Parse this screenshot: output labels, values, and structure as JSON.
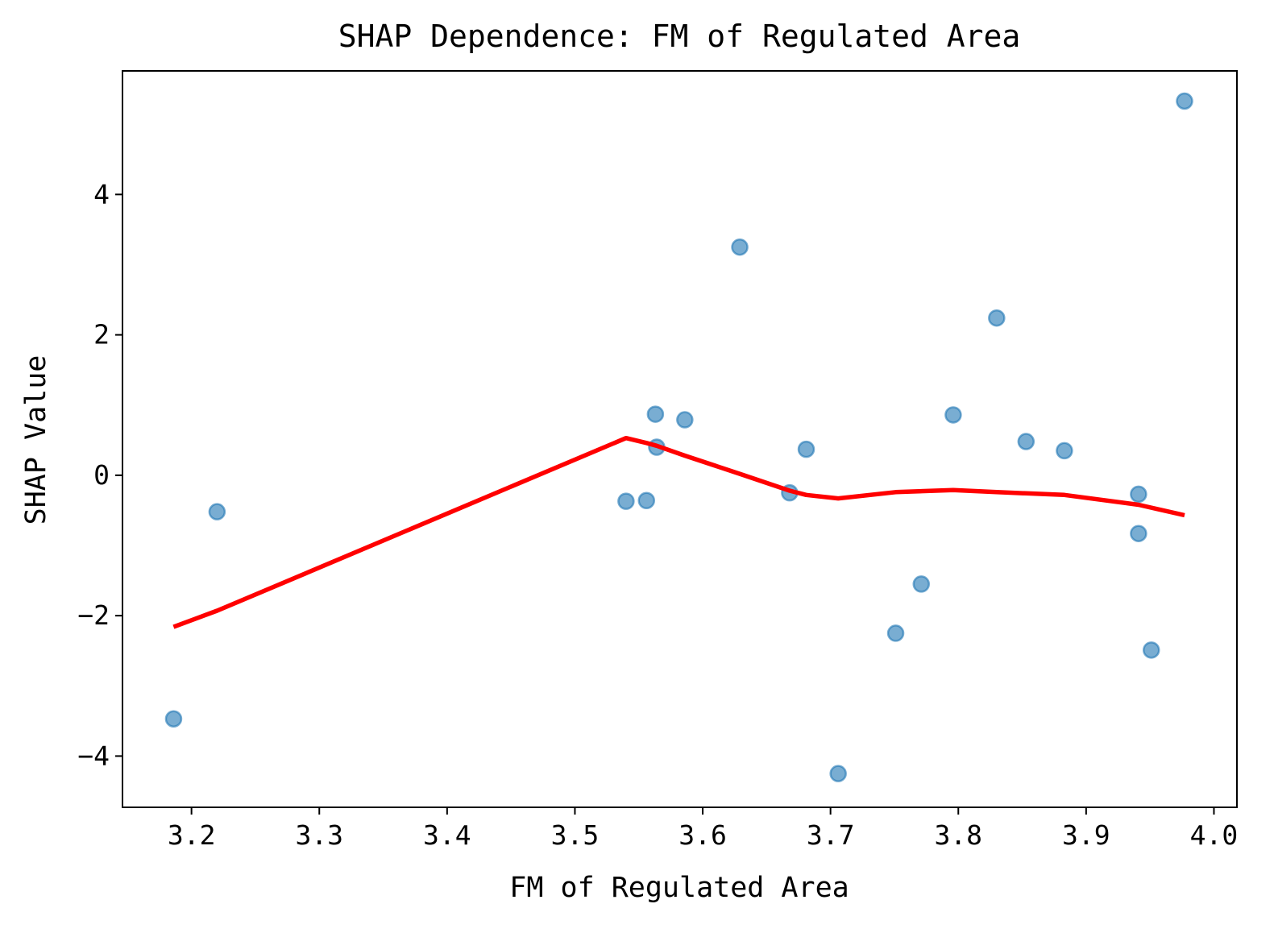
{
  "chart_data": {
    "type": "scatter",
    "title": "SHAP Dependence: FM of Regulated Area",
    "xlabel": "FM of Regulated Area",
    "ylabel": "SHAP Value",
    "xlim": [
      3.146,
      4.018
    ],
    "ylim": [
      -4.73,
      5.76
    ],
    "xticks": [
      3.2,
      3.3,
      3.4,
      3.5,
      3.6,
      3.7,
      3.8,
      3.9,
      4.0
    ],
    "xtick_labels": [
      "3.2",
      "3.3",
      "3.4",
      "3.5",
      "3.6",
      "3.7",
      "3.8",
      "3.9",
      "4.0"
    ],
    "yticks": [
      -4,
      -2,
      0,
      2,
      4
    ],
    "ytick_labels": [
      "−4",
      "−2",
      "0",
      "2",
      "4"
    ],
    "grid": false,
    "colors": {
      "points": "#1f77b4",
      "trend": "#ff0000"
    },
    "series": [
      {
        "type": "scatter",
        "points": [
          {
            "x": 3.186,
            "y": -3.47
          },
          {
            "x": 3.22,
            "y": -0.52
          },
          {
            "x": 3.54,
            "y": -0.37
          },
          {
            "x": 3.556,
            "y": -0.36
          },
          {
            "x": 3.563,
            "y": 0.87
          },
          {
            "x": 3.564,
            "y": 0.4
          },
          {
            "x": 3.586,
            "y": 0.79
          },
          {
            "x": 3.629,
            "y": 3.25
          },
          {
            "x": 3.668,
            "y": -0.25
          },
          {
            "x": 3.681,
            "y": 0.37
          },
          {
            "x": 3.706,
            "y": -4.25
          },
          {
            "x": 3.751,
            "y": -2.25
          },
          {
            "x": 3.771,
            "y": -1.55
          },
          {
            "x": 3.796,
            "y": 0.86
          },
          {
            "x": 3.83,
            "y": 2.24
          },
          {
            "x": 3.853,
            "y": 0.48
          },
          {
            "x": 3.883,
            "y": 0.35
          },
          {
            "x": 3.941,
            "y": -0.27
          },
          {
            "x": 3.941,
            "y": -0.83
          },
          {
            "x": 3.951,
            "y": -2.49
          },
          {
            "x": 3.977,
            "y": 5.33
          }
        ]
      },
      {
        "type": "line",
        "points": [
          {
            "x": 3.186,
            "y": -2.16
          },
          {
            "x": 3.22,
            "y": -1.93
          },
          {
            "x": 3.54,
            "y": 0.53
          },
          {
            "x": 3.556,
            "y": 0.46
          },
          {
            "x": 3.564,
            "y": 0.42
          },
          {
            "x": 3.586,
            "y": 0.28
          },
          {
            "x": 3.629,
            "y": 0.02
          },
          {
            "x": 3.668,
            "y": -0.22
          },
          {
            "x": 3.681,
            "y": -0.28
          },
          {
            "x": 3.706,
            "y": -0.33
          },
          {
            "x": 3.751,
            "y": -0.24
          },
          {
            "x": 3.796,
            "y": -0.21
          },
          {
            "x": 3.83,
            "y": -0.24
          },
          {
            "x": 3.883,
            "y": -0.28
          },
          {
            "x": 3.941,
            "y": -0.42
          },
          {
            "x": 3.977,
            "y": -0.57
          }
        ]
      }
    ]
  }
}
